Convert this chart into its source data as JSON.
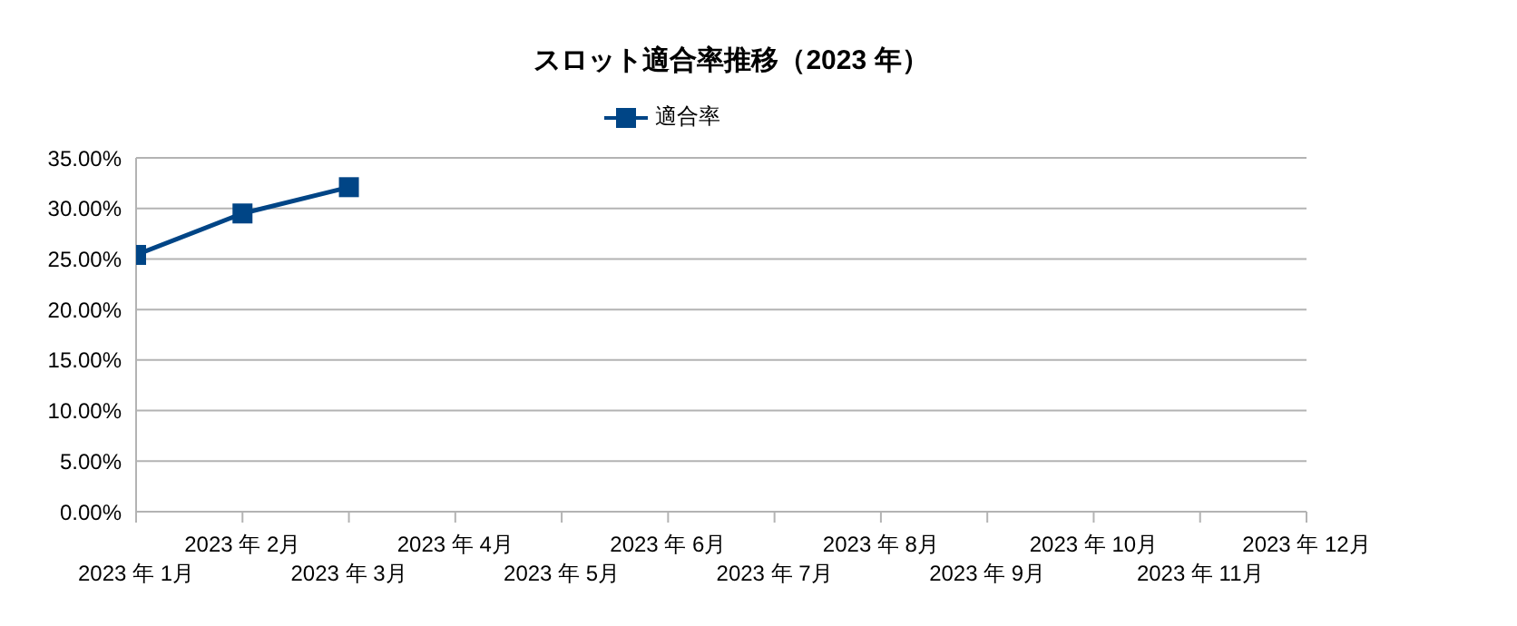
{
  "chart_data": {
    "type": "line",
    "title": "スロット適合率推移（2023 年）",
    "categories": [
      "2023 年 1月",
      "2023 年 2月",
      "2023 年 3月",
      "2023 年 4月",
      "2023 年 5月",
      "2023 年 6月",
      "2023 年 7月",
      "2023 年 8月",
      "2023 年 9月",
      "2023 年 10月",
      "2023 年 11月",
      "2023 年 12月"
    ],
    "series": [
      {
        "name": "適合率",
        "color": "#004586",
        "values": [
          25.4,
          29.5,
          32.1,
          null,
          null,
          null,
          null,
          null,
          null,
          null,
          null,
          null
        ]
      }
    ],
    "ylim": [
      0,
      35
    ],
    "yticks": [
      {
        "value": 0,
        "label": "0.00%"
      },
      {
        "value": 5,
        "label": "5.00%"
      },
      {
        "value": 10,
        "label": "10.00%"
      },
      {
        "value": 15,
        "label": "15.00%"
      },
      {
        "value": 20,
        "label": "20.00%"
      },
      {
        "value": 25,
        "label": "25.00%"
      },
      {
        "value": 30,
        "label": "30.00%"
      },
      {
        "value": 35,
        "label": "35.00%"
      }
    ],
    "grid": "y",
    "legend": "top",
    "marker": "square",
    "line_style": "solid"
  }
}
